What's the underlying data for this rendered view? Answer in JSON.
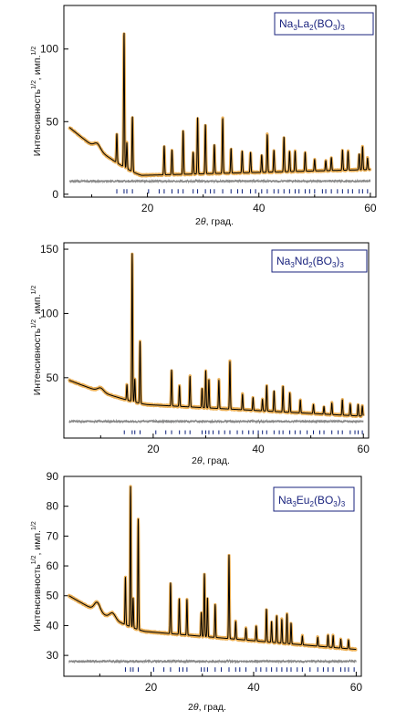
{
  "chart_data": [
    {
      "type": "line",
      "legend": "Na3La2(BO3)3",
      "legend_parts": [
        "Na",
        "3",
        "La",
        "2",
        "(BO",
        "3",
        ")",
        "3"
      ],
      "legend_placement": "top-right",
      "xlabel_parts": [
        "2",
        "θ",
        ", град."
      ],
      "ylabel_parts": [
        "Интенсивность",
        "1/2",
        ", имп.",
        "1/2"
      ],
      "xlim": [
        5,
        61
      ],
      "ylim": [
        -2,
        130
      ],
      "xticks": [
        20,
        40,
        60
      ],
      "yticks": [
        0,
        50,
        100
      ],
      "grid": false,
      "background": {
        "start": 46,
        "break2": 13,
        "end": 17
      },
      "background_bumps": [
        {
          "x": 11,
          "h": 4
        }
      ],
      "peaks": [
        {
          "x": 14.5,
          "h": 20
        },
        {
          "x": 15.8,
          "h": 93
        },
        {
          "x": 16.3,
          "h": 18
        },
        {
          "x": 17.3,
          "h": 38
        },
        {
          "x": 23.0,
          "h": 20
        },
        {
          "x": 24.4,
          "h": 17
        },
        {
          "x": 26.4,
          "h": 30
        },
        {
          "x": 28.2,
          "h": 15
        },
        {
          "x": 29.0,
          "h": 39
        },
        {
          "x": 30.4,
          "h": 34
        },
        {
          "x": 32.0,
          "h": 20
        },
        {
          "x": 33.5,
          "h": 38
        },
        {
          "x": 35.0,
          "h": 17
        },
        {
          "x": 37.0,
          "h": 15
        },
        {
          "x": 38.5,
          "h": 14
        },
        {
          "x": 40.5,
          "h": 12
        },
        {
          "x": 41.5,
          "h": 26
        },
        {
          "x": 42.7,
          "h": 15
        },
        {
          "x": 44.5,
          "h": 24
        },
        {
          "x": 45.5,
          "h": 14
        },
        {
          "x": 46.5,
          "h": 14
        },
        {
          "x": 48.3,
          "h": 13
        },
        {
          "x": 50.0,
          "h": 8
        },
        {
          "x": 52.0,
          "h": 7
        },
        {
          "x": 53.0,
          "h": 9
        },
        {
          "x": 55.0,
          "h": 14
        },
        {
          "x": 56.0,
          "h": 13
        },
        {
          "x": 58.0,
          "h": 11
        },
        {
          "x": 58.6,
          "h": 16
        },
        {
          "x": 59.5,
          "h": 8
        }
      ],
      "difference_level": 9,
      "bragg_y": [
        0.5,
        3.5
      ],
      "bragg_positions": [
        14.5,
        15.8,
        16.3,
        17.3,
        20.2,
        22.1,
        23.0,
        24.4,
        25.5,
        26.4,
        28.2,
        29.0,
        30.4,
        31.3,
        32.0,
        33.5,
        35.0,
        36.2,
        37.0,
        38.5,
        39.4,
        40.5,
        41.5,
        42.7,
        43.5,
        44.5,
        45.5,
        46.5,
        47.2,
        48.3,
        49.1,
        50.0,
        51.4,
        52.0,
        53.0,
        54.1,
        55.0,
        56.0,
        56.8,
        58.0,
        58.6,
        59.5
      ]
    },
    {
      "type": "line",
      "legend": "Na3Nd2(BO3)3",
      "legend_parts": [
        "Na",
        "3",
        "Nd",
        "2",
        "(BO",
        "3",
        ")",
        "3"
      ],
      "legend_placement": "top-right",
      "xlabel_parts": [
        "2",
        "θ",
        ", град."
      ],
      "ylabel_parts": [
        "Интенсивность",
        "1/2",
        ", имп.",
        "1/2"
      ],
      "xlim": [
        3,
        61
      ],
      "ylim": [
        3,
        155
      ],
      "xticks": [
        20,
        40,
        60
      ],
      "yticks": [
        50,
        100,
        150
      ],
      "grid": false,
      "background": {
        "start": 48,
        "break2": 29,
        "end": 20
      },
      "background_bumps": [
        {
          "x": 10,
          "h": 3
        }
      ],
      "peaks": [
        {
          "x": 15.0,
          "h": 12
        },
        {
          "x": 16.0,
          "h": 115
        },
        {
          "x": 16.5,
          "h": 18
        },
        {
          "x": 17.5,
          "h": 48
        },
        {
          "x": 23.5,
          "h": 28
        },
        {
          "x": 25.0,
          "h": 16
        },
        {
          "x": 27.0,
          "h": 24
        },
        {
          "x": 29.3,
          "h": 15
        },
        {
          "x": 30.0,
          "h": 29
        },
        {
          "x": 30.6,
          "h": 22
        },
        {
          "x": 32.5,
          "h": 22
        },
        {
          "x": 34.6,
          "h": 37
        },
        {
          "x": 37.0,
          "h": 12
        },
        {
          "x": 39.0,
          "h": 10
        },
        {
          "x": 40.8,
          "h": 9
        },
        {
          "x": 41.6,
          "h": 20
        },
        {
          "x": 43.0,
          "h": 16
        },
        {
          "x": 44.7,
          "h": 20
        },
        {
          "x": 46.0,
          "h": 15
        },
        {
          "x": 48.0,
          "h": 10
        },
        {
          "x": 50.5,
          "h": 7
        },
        {
          "x": 52.5,
          "h": 6
        },
        {
          "x": 54.0,
          "h": 9
        },
        {
          "x": 56.0,
          "h": 12
        },
        {
          "x": 57.5,
          "h": 9
        },
        {
          "x": 59.0,
          "h": 9
        },
        {
          "x": 59.8,
          "h": 8
        }
      ],
      "difference_level": 16,
      "bragg_y": [
        6,
        9
      ],
      "bragg_positions": [
        14.5,
        16.0,
        16.5,
        17.5,
        20.5,
        22.4,
        23.5,
        25.0,
        26.1,
        27.0,
        29.3,
        30.0,
        30.6,
        31.4,
        32.5,
        33.6,
        34.6,
        36.0,
        37.0,
        38.2,
        39.0,
        40.0,
        40.8,
        41.6,
        43.0,
        44.0,
        44.7,
        46.0,
        47.0,
        48.0,
        49.3,
        50.5,
        51.7,
        52.5,
        54.0,
        55.2,
        56.0,
        57.5,
        58.4,
        59.0,
        59.8
      ]
    },
    {
      "type": "line",
      "legend": "Na3Eu2(BO3)3",
      "legend_parts": [
        "Na",
        "3",
        "Eu",
        "2",
        "(BO",
        "3",
        ")",
        "3"
      ],
      "legend_placement": "top-right",
      "xlabel_parts": [
        "2",
        "θ",
        ", град."
      ],
      "ylabel_parts": [
        "Интенсивность",
        "1/2",
        ", имп.",
        "1/2"
      ],
      "xlim": [
        3,
        61
      ],
      "ylim": [
        23,
        90
      ],
      "xticks": [
        20,
        40,
        60
      ],
      "yticks": [
        30,
        40,
        50,
        60,
        70,
        80,
        90
      ],
      "grid": false,
      "background": {
        "start": 50,
        "break2": 38,
        "end": 32
      },
      "background_bumps": [
        {
          "x": 9.5,
          "h": 3
        },
        {
          "x": 12.5,
          "h": 2
        }
      ],
      "peaks": [
        {
          "x": 15.0,
          "h": 16
        },
        {
          "x": 16.0,
          "h": 47
        },
        {
          "x": 16.5,
          "h": 10
        },
        {
          "x": 17.5,
          "h": 37
        },
        {
          "x": 23.8,
          "h": 17
        },
        {
          "x": 25.5,
          "h": 12
        },
        {
          "x": 27.0,
          "h": 12
        },
        {
          "x": 29.8,
          "h": 8
        },
        {
          "x": 30.4,
          "h": 21
        },
        {
          "x": 31.0,
          "h": 13
        },
        {
          "x": 32.5,
          "h": 11
        },
        {
          "x": 35.2,
          "h": 28
        },
        {
          "x": 36.5,
          "h": 6
        },
        {
          "x": 38.5,
          "h": 4
        },
        {
          "x": 40.5,
          "h": 5
        },
        {
          "x": 42.5,
          "h": 11
        },
        {
          "x": 43.5,
          "h": 7
        },
        {
          "x": 44.5,
          "h": 9
        },
        {
          "x": 45.5,
          "h": 8
        },
        {
          "x": 46.5,
          "h": 10
        },
        {
          "x": 47.3,
          "h": 7
        },
        {
          "x": 49.5,
          "h": 3
        },
        {
          "x": 52.5,
          "h": 3
        },
        {
          "x": 54.5,
          "h": 4
        },
        {
          "x": 55.5,
          "h": 4
        },
        {
          "x": 57.0,
          "h": 3
        },
        {
          "x": 58.5,
          "h": 3
        }
      ],
      "difference_level": 28,
      "bragg_y": [
        24.5,
        26
      ],
      "bragg_positions": [
        15.0,
        16.0,
        16.5,
        17.5,
        20.5,
        22.5,
        23.8,
        25.5,
        26.2,
        27.0,
        29.8,
        30.4,
        31.0,
        32.5,
        33.7,
        35.2,
        36.5,
        37.3,
        38.5,
        40.5,
        41.4,
        42.5,
        43.5,
        44.5,
        45.5,
        46.5,
        47.3,
        48.5,
        49.5,
        51.0,
        52.5,
        53.6,
        54.5,
        55.5,
        57.0,
        57.8,
        58.5,
        59.6
      ]
    }
  ]
}
